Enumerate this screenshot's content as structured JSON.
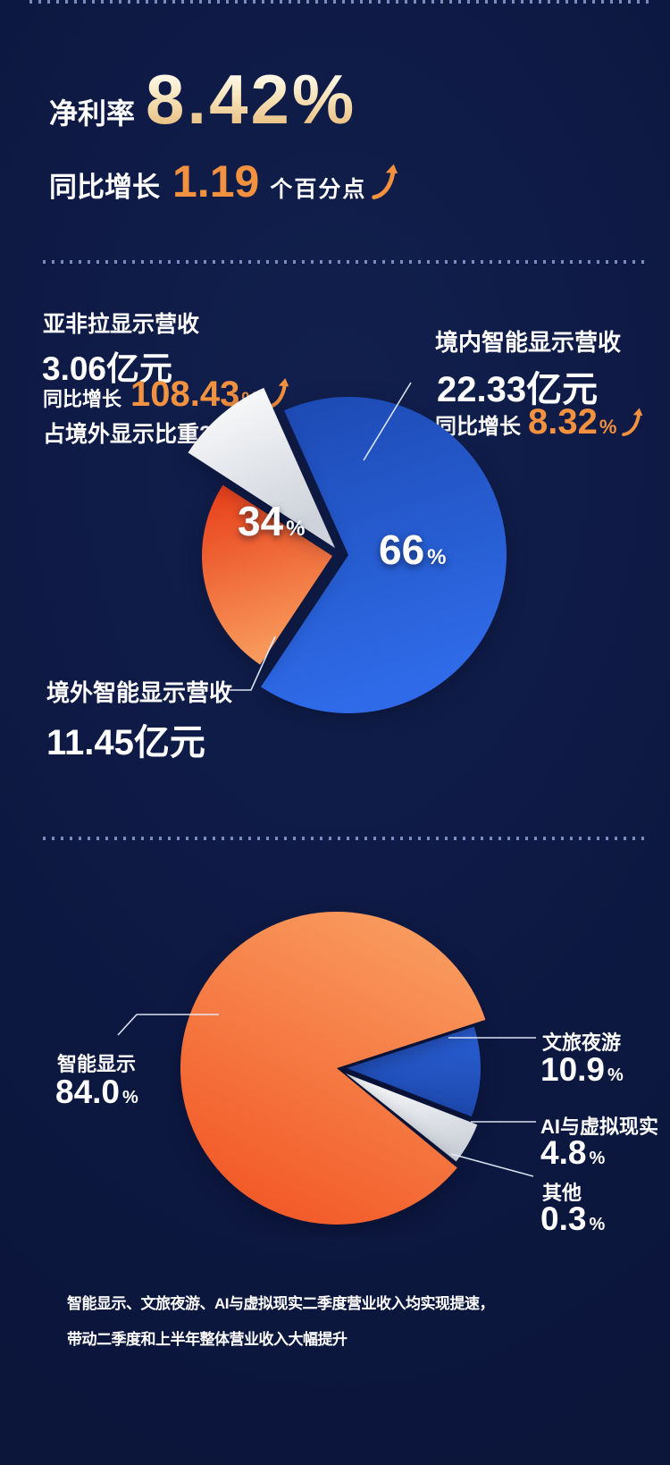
{
  "page": {
    "background": "#0d1841",
    "accent_orange": "#f2913f",
    "dot_color": "#8d9fd6",
    "leader_line_color": "#e6ecf8"
  },
  "header": {
    "label": "净利率",
    "value": "8.42%",
    "growth_prefix": "同比增长",
    "growth_value": "1.19",
    "growth_suffix": "个百分点"
  },
  "revenue_split": {
    "region_label": "亚非拉显示营收",
    "region_value": "3.06亿元",
    "region_growth_prefix": "同比增长",
    "region_growth_value": "108.43",
    "region_growth_unit": "%",
    "region_share_note": "占境外显示比重27%",
    "domestic_label": "境内智能显示营收",
    "domestic_value": "22.33亿元",
    "domestic_growth_prefix": "同比增长",
    "domestic_growth_value": "8.32",
    "domestic_growth_unit": "%",
    "domestic_pct": "66",
    "overseas_pct": "34",
    "pct_sign": "%",
    "overseas_label": "境外智能显示营收",
    "overseas_value": "11.45亿元"
  },
  "business_mix": {
    "smart_display_label": "智能显示",
    "smart_display_pct": "84.0",
    "culture_tourism_label": "文旅夜游",
    "culture_tourism_pct": "10.9",
    "ai_vr_label": "AI与虚拟现实",
    "ai_vr_pct": "4.8",
    "other_label": "其他",
    "other_pct": "0.3",
    "pct_sign": "%"
  },
  "caption": {
    "line1": "智能显示、文旅夜游、AI与虚拟现实二季度营业收入均实现提速，",
    "line2": "带动二季度和上半年整体营业收入大幅提升"
  },
  "chart_data": [
    {
      "type": "pie",
      "unit": "%",
      "slices": [
        {
          "label": "境内智能显示营收",
          "value": 66,
          "amount": "22.33亿元",
          "yoy_growth": "8.32%",
          "color": "#1c49b2",
          "color2": "#2f6be8"
        },
        {
          "label": "境外智能显示营收",
          "value": 34,
          "amount": "11.45亿元",
          "color": "#e8401a",
          "color2": "#f99e5f",
          "sub_slice": {
            "label": "亚非拉显示营收",
            "amount": "3.06亿元",
            "yoy_growth": "108.43%",
            "share_of_overseas_pct": 27,
            "color": "#ffffff",
            "color2": "#ced3db"
          }
        }
      ],
      "legend": false
    },
    {
      "type": "pie",
      "unit": "%",
      "slices": [
        {
          "label": "智能显示",
          "value": 84.0,
          "color": "#f99d60",
          "color2": "#f25726"
        },
        {
          "label": "文旅夜游",
          "value": 10.9,
          "color": "#2a60d8",
          "color2": "#1c48ab"
        },
        {
          "label": "AI与虚拟现实",
          "value": 4.8,
          "color": "#ffffff",
          "color2": "#cdd2da"
        },
        {
          "label": "其他",
          "value": 0.3,
          "color": null
        }
      ],
      "legend": false
    }
  ]
}
